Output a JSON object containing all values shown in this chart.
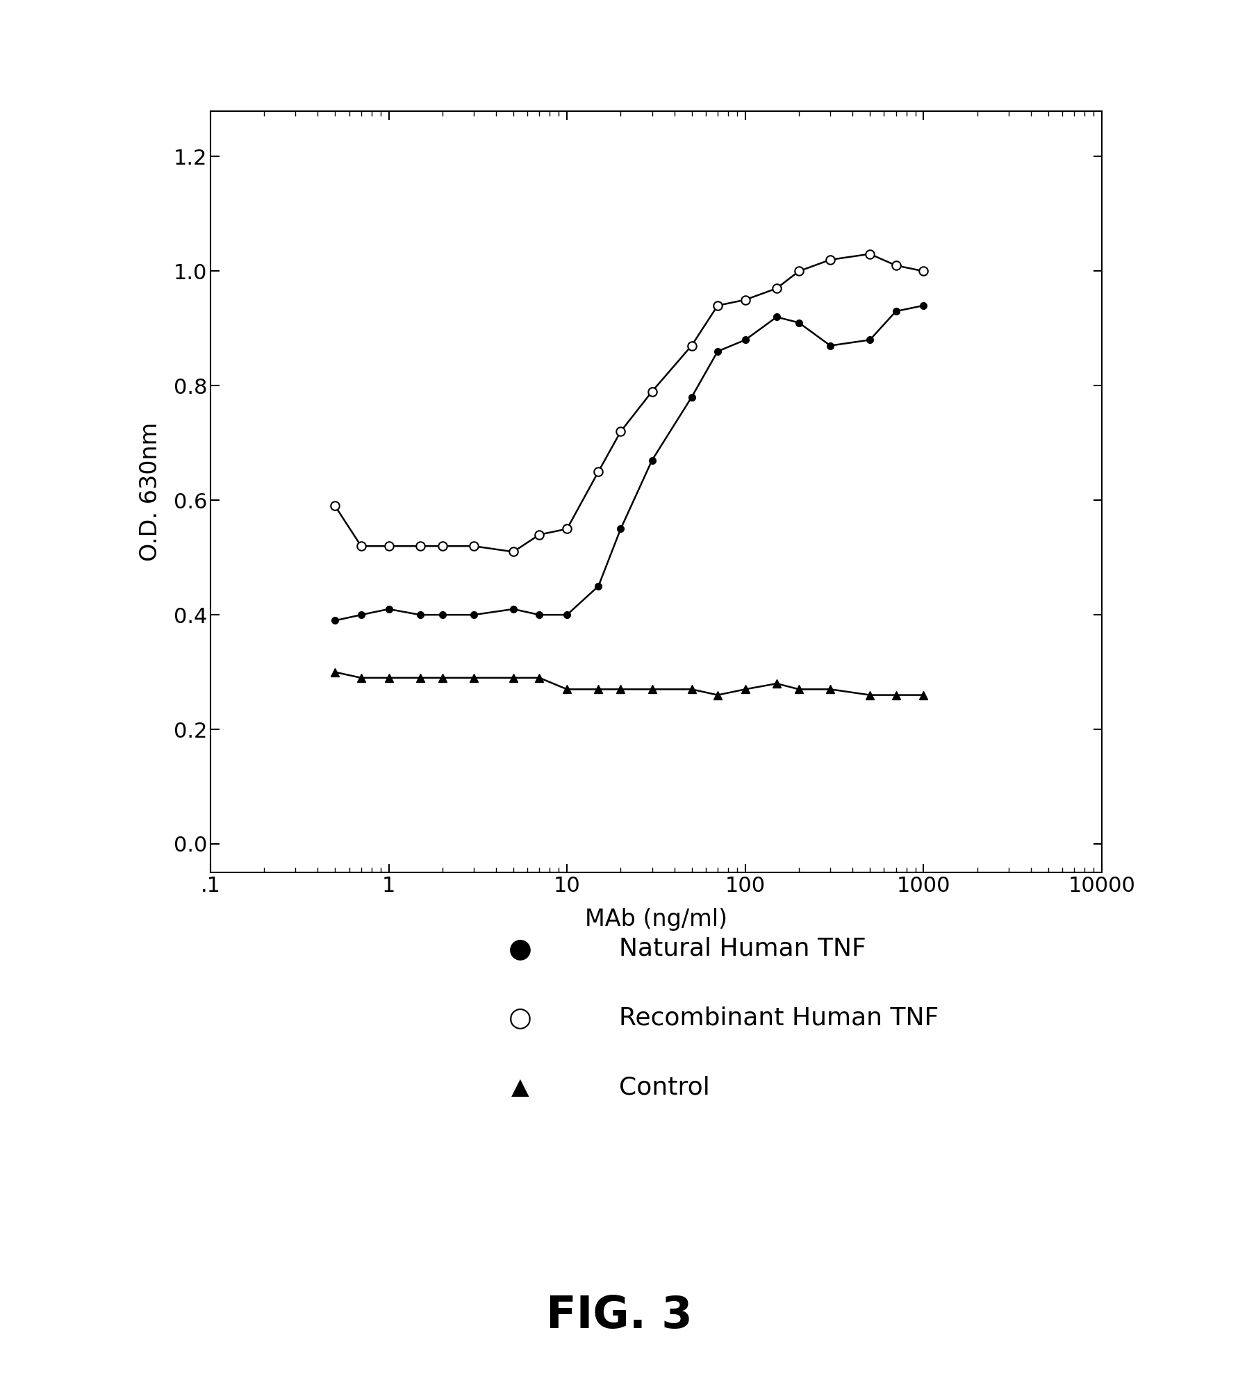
{
  "natural_x": [
    0.5,
    0.7,
    1.0,
    1.5,
    2.0,
    3.0,
    5.0,
    7.0,
    10.0,
    15.0,
    20.0,
    30.0,
    50.0,
    70.0,
    100.0,
    150.0,
    200.0,
    300.0,
    500.0,
    700.0,
    1000.0
  ],
  "natural_y": [
    0.39,
    0.4,
    0.41,
    0.4,
    0.4,
    0.4,
    0.41,
    0.4,
    0.4,
    0.45,
    0.55,
    0.67,
    0.78,
    0.86,
    0.88,
    0.92,
    0.91,
    0.87,
    0.88,
    0.93,
    0.94
  ],
  "recombinant_x": [
    0.5,
    0.7,
    1.0,
    1.5,
    2.0,
    3.0,
    5.0,
    7.0,
    10.0,
    15.0,
    20.0,
    30.0,
    50.0,
    70.0,
    100.0,
    150.0,
    200.0,
    300.0,
    500.0,
    700.0,
    1000.0
  ],
  "recombinant_y": [
    0.59,
    0.52,
    0.52,
    0.52,
    0.52,
    0.52,
    0.51,
    0.54,
    0.55,
    0.65,
    0.72,
    0.79,
    0.87,
    0.94,
    0.95,
    0.97,
    1.0,
    1.02,
    1.03,
    1.01,
    1.0
  ],
  "control_x": [
    0.5,
    0.7,
    1.0,
    1.5,
    2.0,
    3.0,
    5.0,
    7.0,
    10.0,
    15.0,
    20.0,
    30.0,
    50.0,
    70.0,
    100.0,
    150.0,
    200.0,
    300.0,
    500.0,
    700.0,
    1000.0
  ],
  "control_y": [
    0.3,
    0.29,
    0.29,
    0.29,
    0.29,
    0.29,
    0.29,
    0.29,
    0.27,
    0.27,
    0.27,
    0.27,
    0.27,
    0.26,
    0.27,
    0.28,
    0.27,
    0.27,
    0.26,
    0.26,
    0.26
  ],
  "xlabel": "MAb (ng/ml)",
  "ylabel": "O.D. 630nm",
  "ylim": [
    -0.05,
    1.28
  ],
  "yticks": [
    0.0,
    0.2,
    0.4,
    0.6,
    0.8,
    1.0,
    1.2
  ],
  "xtick_labels": [
    ".1",
    "1",
    "10",
    "100",
    "1000",
    "10000"
  ],
  "xtick_positions": [
    0.1,
    1,
    10,
    100,
    1000,
    10000
  ],
  "legend_labels": [
    "Natural Human TNF",
    "Recombinant Human TNF",
    "Control"
  ],
  "fig_title": "FIG. 3",
  "line_color": "#000000",
  "background_color": "#ffffff",
  "title_fontsize": 46,
  "axis_label_fontsize": 24,
  "tick_fontsize": 22,
  "legend_fontsize": 26
}
